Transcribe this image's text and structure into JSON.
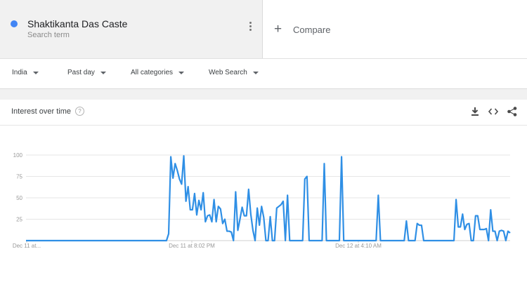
{
  "search_term": {
    "name": "Shaktikanta Das Caste",
    "subtitle": "Search term",
    "color": "#4285f4"
  },
  "compare": {
    "label": "Compare"
  },
  "filters": {
    "region": "India",
    "time": "Past day",
    "category": "All categories",
    "property": "Web Search"
  },
  "card": {
    "title": "Interest over time",
    "help_icon": "?",
    "icons": [
      "download-icon",
      "embed-icon",
      "share-icon"
    ]
  },
  "chart_data": {
    "type": "line",
    "title": "Interest over time",
    "ylim": [
      0,
      100
    ],
    "y_ticks": [
      25,
      50,
      75,
      100
    ],
    "x_tick_labels": [
      "Dec 11 at...",
      "Dec 11 at 8:02 PM",
      "Dec 12 at 4:10 AM"
    ],
    "grid": true,
    "series": [
      {
        "color": "#2f8fe5",
        "values": [
          0,
          0,
          0,
          0,
          0,
          0,
          0,
          0,
          0,
          0,
          0,
          0,
          0,
          0,
          0,
          0,
          0,
          0,
          0,
          0,
          0,
          0,
          0,
          0,
          0,
          0,
          0,
          0,
          0,
          0,
          0,
          0,
          0,
          0,
          0,
          0,
          0,
          0,
          0,
          0,
          0,
          0,
          0,
          0,
          0,
          0,
          0,
          0,
          0,
          0,
          0,
          0,
          0,
          0,
          0,
          0,
          0,
          0,
          0,
          0,
          0,
          0,
          0,
          0,
          0,
          0,
          8,
          98,
          73,
          90,
          82,
          72,
          66,
          99,
          46,
          63,
          36,
          36,
          55,
          30,
          47,
          36,
          56,
          22,
          29,
          30,
          22,
          48,
          22,
          40,
          37,
          20,
          25,
          11,
          11,
          10,
          0,
          57,
          12,
          25,
          39,
          29,
          29,
          60,
          31,
          12,
          0,
          38,
          18,
          40,
          27,
          0,
          0,
          28,
          0,
          0,
          38,
          40,
          42,
          46,
          0,
          53,
          0,
          0,
          0,
          0,
          0,
          0,
          0,
          72,
          75,
          0,
          0,
          0,
          0,
          0,
          0,
          0,
          90,
          0,
          0,
          0,
          0,
          0,
          0,
          0,
          98,
          0,
          0,
          0,
          0,
          0,
          0,
          0,
          0,
          0,
          0,
          0,
          0,
          0,
          0,
          0,
          0,
          53,
          0,
          0,
          0,
          0,
          0,
          0,
          0,
          0,
          0,
          0,
          0,
          0,
          23,
          0,
          0,
          0,
          0,
          20,
          18,
          18,
          0,
          0,
          0,
          0,
          0,
          0,
          0,
          0,
          0,
          0,
          0,
          0,
          0,
          0,
          0,
          48,
          16,
          16,
          31,
          13,
          19,
          20,
          0,
          0,
          29,
          29,
          13,
          13,
          13,
          14,
          0,
          36,
          11,
          11,
          0,
          11,
          12,
          11,
          0,
          11,
          9
        ]
      }
    ]
  }
}
